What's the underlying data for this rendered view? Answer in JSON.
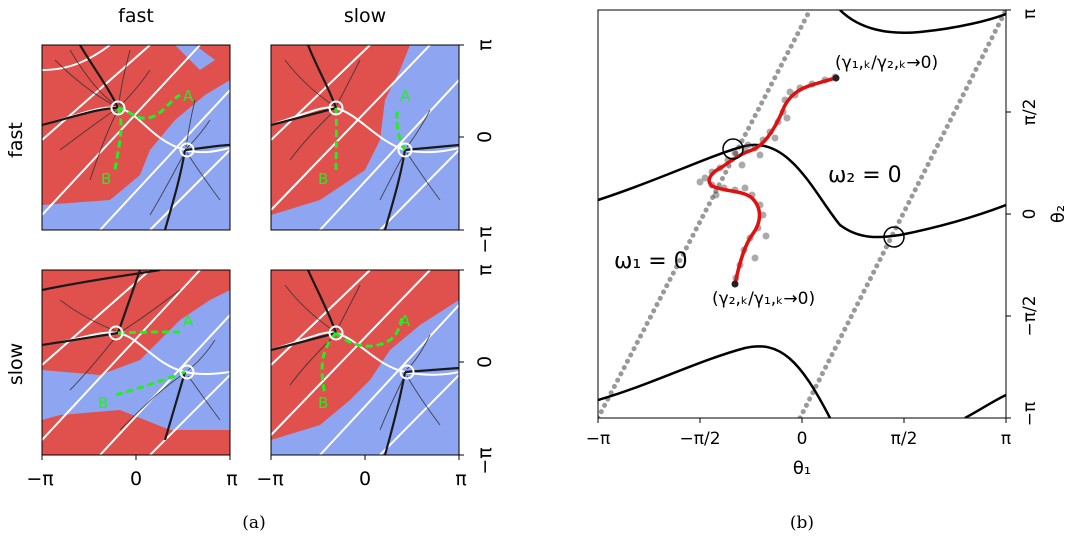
{
  "panel_a": {
    "column_headers": [
      "fast",
      "slow"
    ],
    "row_headers": [
      "fast",
      "slow"
    ],
    "x_ticks": [
      "−π",
      "0",
      "π"
    ],
    "y_ticks": [
      "π",
      "0",
      "−π"
    ],
    "point_labels": [
      "A",
      "B"
    ],
    "caption": "(a)",
    "colors": {
      "region_red": "#e0504d",
      "region_blue": "#8ea6f2",
      "path_green": "#22ee22"
    }
  },
  "panel_b": {
    "x_ticks": [
      "−π",
      "−π/2",
      "0",
      "π/2",
      "π"
    ],
    "y_ticks": [
      "π",
      "π/2",
      "0",
      "−π/2",
      "−π"
    ],
    "xlabel": "θ₁",
    "ylabel": "θ₂",
    "annotations": {
      "omega1": "ω₁ = 0",
      "omega2": "ω₂ = 0",
      "ratio_top": "(γ₁,ₖ/γ₂,ₖ→0)",
      "ratio_bottom": "(γ₂,ₖ/γ₁,ₖ→0)"
    },
    "caption": "(b)",
    "colors": {
      "path_red": "#e01010",
      "points_gray": "#444444",
      "nullcline_dotted": "#999999"
    }
  }
}
